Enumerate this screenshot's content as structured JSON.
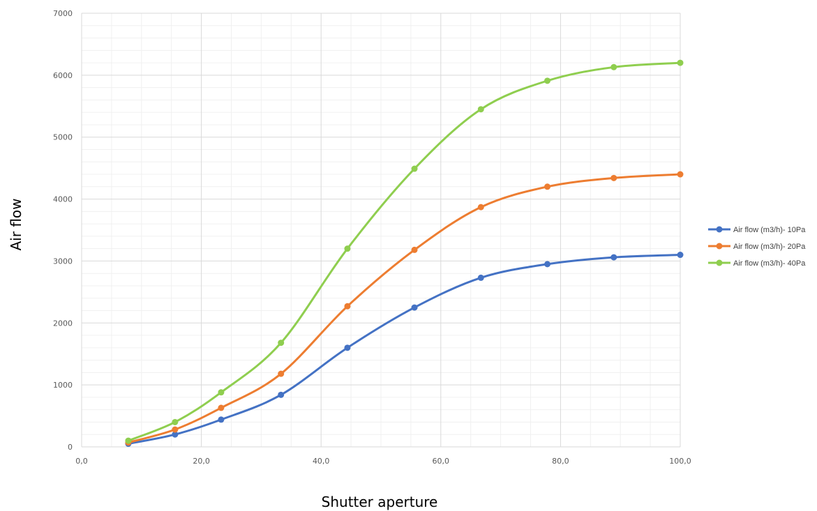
{
  "chart_data": {
    "type": "line",
    "title": "",
    "xlabel": "Shutter aperture",
    "ylabel": "Air flow",
    "xlim": [
      0,
      100
    ],
    "ylim": [
      0,
      7000
    ],
    "x_ticks": [
      0,
      20,
      40,
      60,
      80,
      100
    ],
    "x_tick_labels": [
      "0,0",
      "20,0",
      "40,0",
      "60,0",
      "80,0",
      "100,0"
    ],
    "y_ticks": [
      0,
      1000,
      2000,
      3000,
      4000,
      5000,
      6000,
      7000
    ],
    "y_tick_labels": [
      "0",
      "1000",
      "2000",
      "3000",
      "4000",
      "5000",
      "6000",
      "7000"
    ],
    "grid": true,
    "minor_grid": true,
    "legend_position": "right",
    "smooth": true,
    "x": [
      7.8,
      15.6,
      23.3,
      33.3,
      44.4,
      55.6,
      66.7,
      77.8,
      88.9,
      100.0
    ],
    "series": [
      {
        "name": "Air flow (m3/h)- 10Pa",
        "color": "#4472c4",
        "values": [
          50,
          200,
          440,
          840,
          1600,
          2250,
          2730,
          2950,
          3060,
          3100
        ]
      },
      {
        "name": "Air flow (m3/h)- 20Pa",
        "color": "#ed7d31",
        "values": [
          70,
          280,
          630,
          1180,
          2270,
          3180,
          3870,
          4200,
          4340,
          4400
        ]
      },
      {
        "name": "Air flow (m3/h)- 40Pa",
        "color": "#8fce4f",
        "values": [
          100,
          400,
          880,
          1680,
          3200,
          4490,
          5450,
          5910,
          6130,
          6200
        ]
      }
    ]
  }
}
